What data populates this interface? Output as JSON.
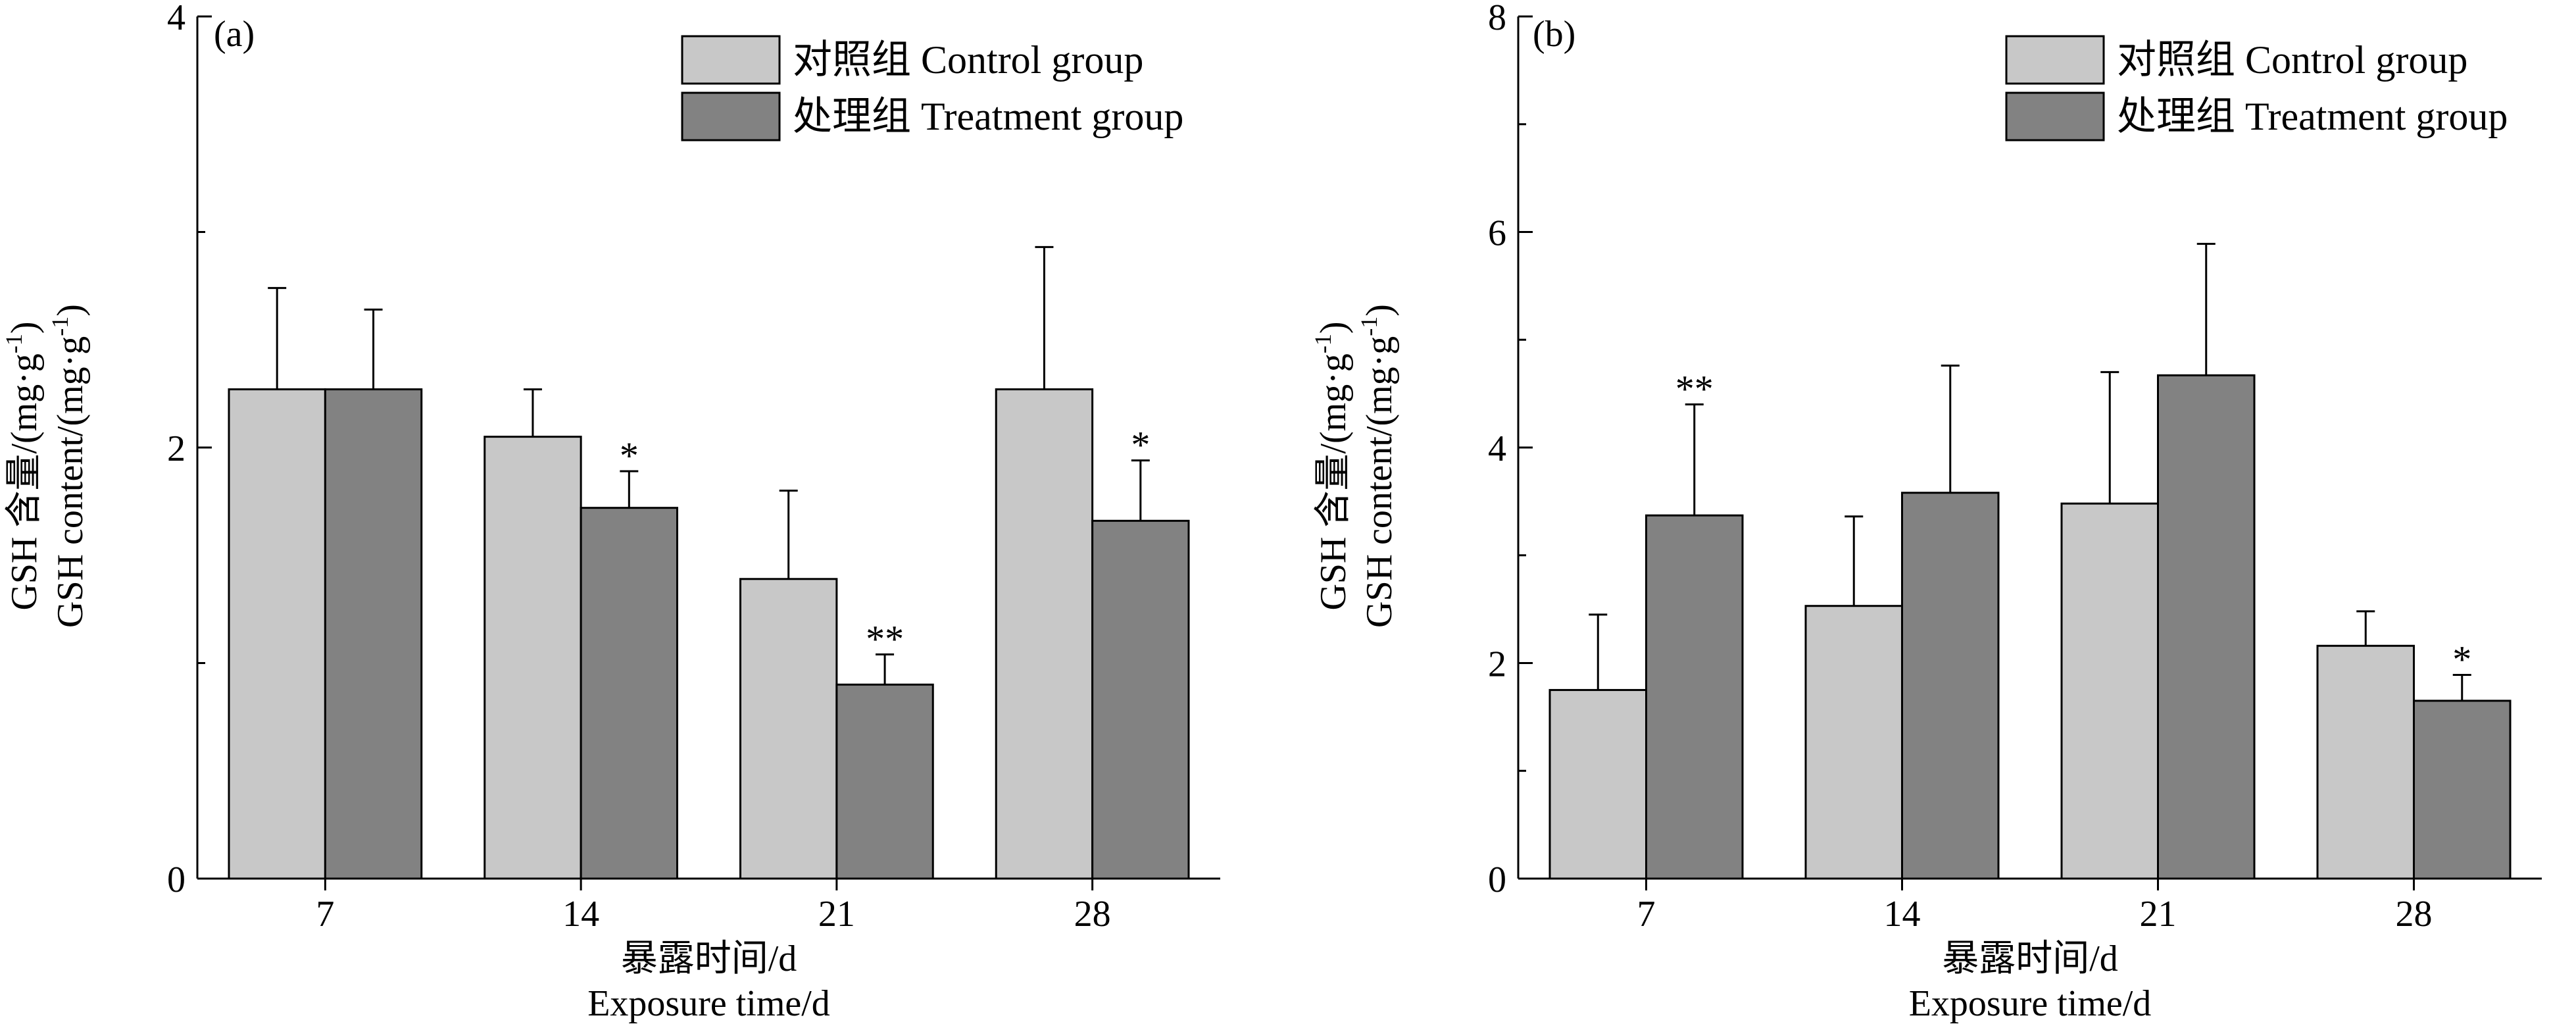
{
  "colors": {
    "control": "#c8c8c8",
    "treatment": "#828282",
    "stroke": "#000000"
  },
  "chart_data": [
    {
      "type": "bar",
      "panel_label": "(a)",
      "categories": [
        "7",
        "14",
        "21",
        "28"
      ],
      "series": [
        {
          "name": "对照组 Control group",
          "values": [
            2.27,
            2.05,
            1.39,
            2.27
          ],
          "errors": [
            0.47,
            0.22,
            0.41,
            0.66
          ]
        },
        {
          "name": "处理组 Treatment group",
          "values": [
            2.27,
            1.72,
            0.9,
            1.66
          ],
          "errors": [
            0.37,
            0.17,
            0.14,
            0.28
          ]
        }
      ],
      "significance": [
        {
          "series": 1,
          "category": 1,
          "label": "*"
        },
        {
          "series": 1,
          "category": 2,
          "label": "**"
        },
        {
          "series": 1,
          "category": 3,
          "label": "*"
        }
      ],
      "ylim": [
        0,
        4
      ],
      "yticks": [
        "0",
        "2",
        "4"
      ],
      "ylabel_line1": "GSH 含量/(mg·g",
      "ylabel_line2": "GSH content/(mg·g",
      "ylabel_sup": "-1",
      "ylabel_close": ")",
      "xlabel_line1": "暴露时间/d",
      "xlabel_line2": "Exposure time/d",
      "legend_position": "top-right"
    },
    {
      "type": "bar",
      "panel_label": "(b)",
      "categories": [
        "7",
        "14",
        "21",
        "28"
      ],
      "series": [
        {
          "name": "对照组 Control group",
          "values": [
            1.75,
            2.53,
            3.48,
            2.16
          ],
          "errors": [
            0.7,
            0.83,
            1.22,
            0.32
          ]
        },
        {
          "name": "处理组 Treatment group",
          "values": [
            3.37,
            3.58,
            4.67,
            1.65
          ],
          "errors": [
            1.03,
            1.18,
            1.22,
            0.24
          ]
        }
      ],
      "significance": [
        {
          "series": 1,
          "category": 0,
          "label": "**"
        },
        {
          "series": 1,
          "category": 3,
          "label": "*"
        }
      ],
      "ylim": [
        0,
        8
      ],
      "yticks": [
        "0",
        "2",
        "4",
        "6",
        "8"
      ],
      "ylabel_line1": "GSH 含量/(mg·g",
      "ylabel_line2": "GSH content/(mg·g",
      "ylabel_sup": "-1",
      "ylabel_close": ")",
      "xlabel_line1": "暴露时间/d",
      "xlabel_line2": "Exposure time/d",
      "legend_position": "top-right"
    }
  ]
}
